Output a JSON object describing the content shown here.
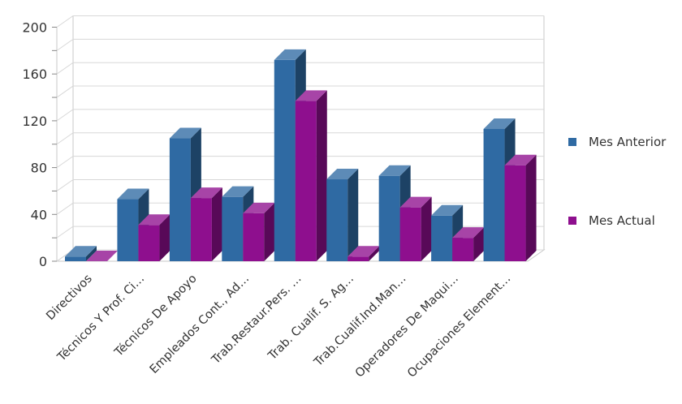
{
  "chart_data": {
    "type": "bar",
    "style": "3d-clustered",
    "categories": [
      "Directivos",
      "Técnicos Y Prof. Ci…",
      "Técnicos De Apoyo",
      "Empleados Cont., Ad…",
      "Trab.Restaur.Pers. …",
      "Trab. Cualif. S. Ag…",
      "Trab.Cualif.Ind.Man…",
      "Operadores De Maqui…",
      "Ocupaciones Element…"
    ],
    "series": [
      {
        "name": "Mes Anterior",
        "color": "#2f6aa3",
        "values": [
          4,
          53,
          105,
          55,
          172,
          70,
          73,
          39,
          113
        ]
      },
      {
        "name": "Mes Actual",
        "color": "#8e0f8e",
        "values": [
          0,
          31,
          54,
          41,
          137,
          4,
          46,
          20,
          82
        ]
      }
    ],
    "title": "",
    "xlabel": "",
    "ylabel": "",
    "yticks": [
      "0",
      "40",
      "80",
      "120",
      "160",
      "200"
    ],
    "ylim": [
      0,
      200
    ],
    "grid": true,
    "legend": "right"
  }
}
